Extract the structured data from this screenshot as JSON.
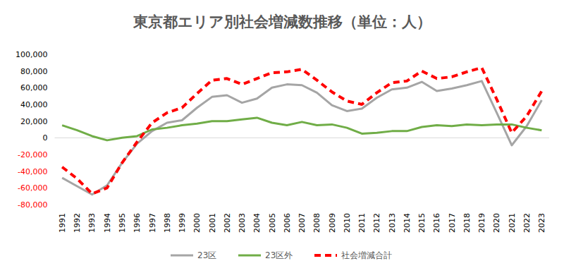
{
  "chart_data": {
    "type": "line",
    "title": "東京都エリア別社会増減数推移（単位：人）",
    "categories": [
      "1991",
      "1992",
      "1993",
      "1994",
      "1995",
      "1996",
      "1997",
      "1998",
      "1999",
      "2000",
      "2001",
      "2002",
      "2003",
      "2004",
      "2005",
      "2006",
      "2007",
      "2008",
      "2009",
      "2010",
      "2011",
      "2012",
      "2013",
      "2014",
      "2015",
      "2016",
      "2017",
      "2018",
      "2019",
      "2020",
      "2021",
      "2022",
      "2023"
    ],
    "series": [
      {
        "name": "23区",
        "color": "#a5a5a5",
        "line_style": "solid",
        "marker": "none",
        "values": [
          -48000,
          -58000,
          -68000,
          -57000,
          -30000,
          -7000,
          8000,
          18000,
          21000,
          36000,
          49000,
          51000,
          42000,
          47000,
          60000,
          64000,
          63000,
          54000,
          39000,
          32000,
          35000,
          48000,
          58000,
          60000,
          67000,
          56000,
          59000,
          63000,
          68000,
          30000,
          -9000,
          14000,
          45000
        ]
      },
      {
        "name": "23区外",
        "color": "#70ad47",
        "line_style": "solid",
        "marker": "none",
        "values": [
          15000,
          9000,
          2000,
          -3000,
          0,
          2000,
          10000,
          12000,
          15000,
          17000,
          20000,
          20000,
          22000,
          24000,
          18000,
          15000,
          19000,
          15000,
          16000,
          12000,
          5000,
          6000,
          8000,
          8000,
          13000,
          15000,
          14000,
          16000,
          15000,
          16000,
          16000,
          12000,
          9000
        ]
      },
      {
        "name": "社会増減合計",
        "color": "#ff0000",
        "line_style": "dashed",
        "marker": "none",
        "values": [
          -35000,
          -49000,
          -67000,
          -60000,
          -30000,
          -5000,
          18000,
          30000,
          36000,
          53000,
          69000,
          71000,
          64000,
          71000,
          78000,
          79000,
          82000,
          69000,
          55000,
          44000,
          40000,
          54000,
          66000,
          68000,
          80000,
          71000,
          73000,
          79000,
          84000,
          46000,
          6000,
          26000,
          56000
        ]
      }
    ],
    "ylim": [
      -80000,
      100000
    ],
    "yticks": [
      {
        "value": 100000,
        "label": "100,000"
      },
      {
        "value": 80000,
        "label": "80,000"
      },
      {
        "value": 60000,
        "label": "60,000"
      },
      {
        "value": 40000,
        "label": "40,000"
      },
      {
        "value": 20000,
        "label": "20,000"
      },
      0,
      {
        "value": -20000,
        "label": "-20,000"
      },
      {
        "value": -40000,
        "label": "-40,000"
      },
      {
        "value": -60000,
        "label": "-60,000"
      },
      {
        "value": -80000,
        "label": "-80,000"
      }
    ],
    "grid": false,
    "legend": "bottom"
  }
}
